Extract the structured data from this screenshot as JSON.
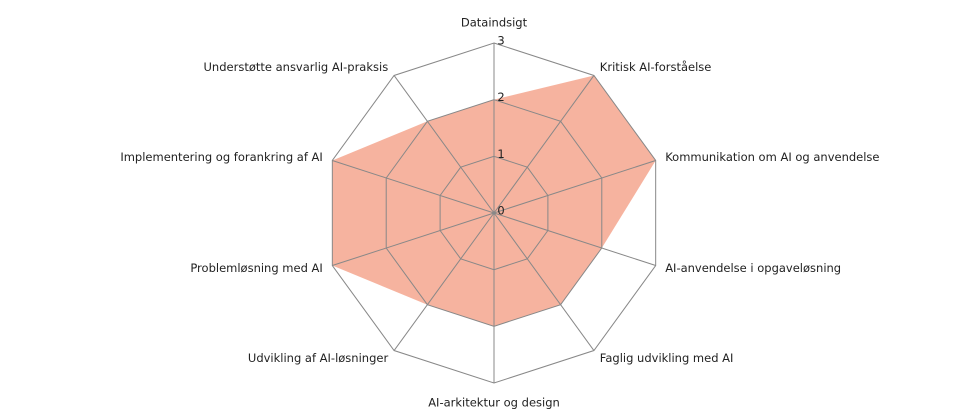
{
  "chart_data": {
    "type": "radar",
    "categories": [
      "Dataindsigt",
      "Kritisk AI-forståelse",
      "Kommunikation om AI og anvendelse",
      "AI-anvendelse i opgaveløsning",
      "Faglig udvikling med AI",
      "AI-arkitektur og design",
      "Udvikling af AI-løsninger",
      "Problemløsning med AI",
      "Implementering og forankring af AI",
      "Understøtte ansvarlig AI-praksis"
    ],
    "values": [
      2,
      3,
      3,
      2,
      2,
      2,
      2,
      3,
      3,
      2
    ],
    "color": "#f4a68e",
    "rlim": [
      0,
      3
    ],
    "rticks": [
      0,
      1,
      2,
      3
    ],
    "grid": true
  }
}
